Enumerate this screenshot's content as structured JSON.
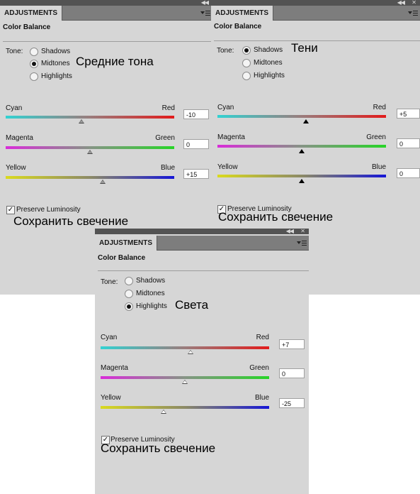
{
  "panels": [
    {
      "tab_label": "ADJUSTMENTS",
      "title": "Color Balance",
      "tone_label": "Tone:",
      "tones": [
        {
          "label": "Shadows",
          "selected": false
        },
        {
          "label": "Midtones",
          "selected": true
        },
        {
          "label": "Highlights",
          "selected": false
        }
      ],
      "annotation": "Средние тона",
      "sliders": [
        {
          "left": "Cyan",
          "right": "Red",
          "value": "-10",
          "level": -10
        },
        {
          "left": "Magenta",
          "right": "Green",
          "value": "0",
          "level": 0
        },
        {
          "left": "Yellow",
          "right": "Blue",
          "value": "+15",
          "level": 15
        }
      ],
      "preserve_label": "Preserve Luminosity",
      "preserve_checked": "✓",
      "preserve_annotation": "Сохранить свечение"
    },
    {
      "tab_label": "ADJUSTMENTS",
      "title": "Color Balance",
      "tone_label": "Tone:",
      "tones": [
        {
          "label": "Shadows",
          "selected": true
        },
        {
          "label": "Midtones",
          "selected": false
        },
        {
          "label": "Highlights",
          "selected": false
        }
      ],
      "annotation": "Тени",
      "sliders": [
        {
          "left": "Cyan",
          "right": "Red",
          "value": "+5",
          "level": 5
        },
        {
          "left": "Magenta",
          "right": "Green",
          "value": "0",
          "level": 0
        },
        {
          "left": "Yellow",
          "right": "Blue",
          "value": "0",
          "level": 0
        }
      ],
      "preserve_label": "Preserve Luminosity",
      "preserve_checked": "✓",
      "preserve_annotation": "Сохранить свечение"
    },
    {
      "tab_label": "ADJUSTMENTS",
      "title": "Color Balance",
      "tone_label": "Tone:",
      "tones": [
        {
          "label": "Shadows",
          "selected": false
        },
        {
          "label": "Midtones",
          "selected": false
        },
        {
          "label": "Highlights",
          "selected": true
        }
      ],
      "annotation": "Света",
      "sliders": [
        {
          "left": "Cyan",
          "right": "Red",
          "value": "+7",
          "level": 7
        },
        {
          "left": "Magenta",
          "right": "Green",
          "value": "0",
          "level": 0
        },
        {
          "left": "Yellow",
          "right": "Blue",
          "value": "-25",
          "level": -25
        }
      ],
      "preserve_label": "Preserve Luminosity",
      "preserve_checked": "✓",
      "preserve_annotation": "Сохранить свечение"
    }
  ],
  "icons": {
    "collapse": "double-arrow-icon",
    "menu": "panel-menu-icon",
    "close": "close-icon"
  },
  "colors": {
    "panel_bg": "#d6d6d6",
    "tab_bar": "#7d7d7d",
    "top_strip": "#535353"
  }
}
